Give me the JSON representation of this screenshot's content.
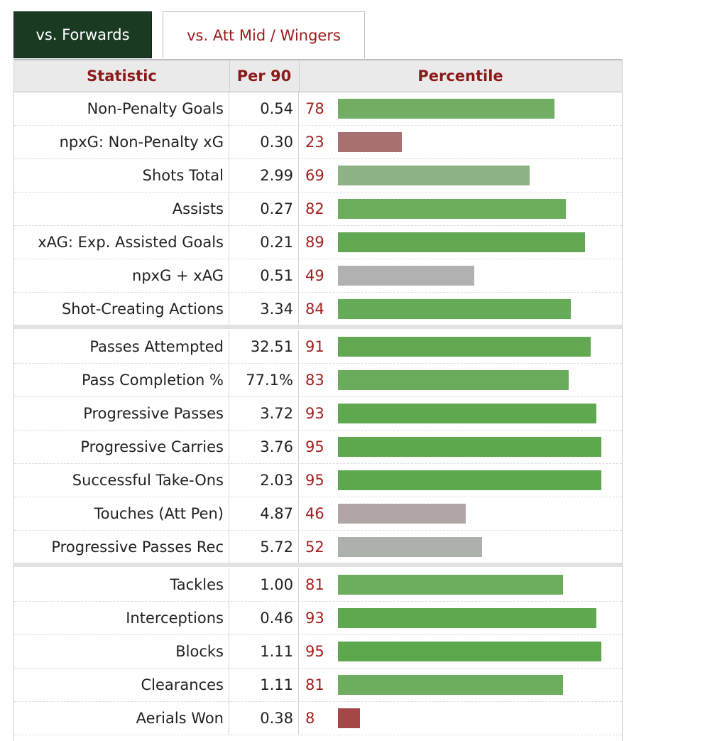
{
  "tabs": [
    {
      "label": "vs. Forwards",
      "active": true
    },
    {
      "label": "vs. Att Mid / Wingers",
      "active": false
    }
  ],
  "headers": {
    "statistic": "Statistic",
    "per90": "Per 90",
    "percentile": "Percentile"
  },
  "colors": {
    "high": "#62a852",
    "high_mid": "#72ad62",
    "mid_green": "#8cb286",
    "neutral": "#b1b1b1",
    "neutral_warm": "#b0a6a6",
    "neutral_cool": "#adb1ac",
    "low": "#a87070",
    "very_low": "#a54747"
  },
  "sections": [
    [
      {
        "stat": "Non-Penalty Goals",
        "per90": "0.54",
        "percentile": 78,
        "color": "#71ad63"
      },
      {
        "stat": "npxG: Non-Penalty xG",
        "per90": "0.30",
        "percentile": 23,
        "color": "#a87070"
      },
      {
        "stat": "Shots Total",
        "per90": "2.99",
        "percentile": 69,
        "color": "#8cb286"
      },
      {
        "stat": "Assists",
        "per90": "0.27",
        "percentile": 82,
        "color": "#6cad5c"
      },
      {
        "stat": "xAG: Exp. Assisted Goals",
        "per90": "0.21",
        "percentile": 89,
        "color": "#62a852"
      },
      {
        "stat": "npxG + xAG",
        "per90": "0.51",
        "percentile": 49,
        "color": "#b1b1b1"
      },
      {
        "stat": "Shot-Creating Actions",
        "per90": "3.34",
        "percentile": 84,
        "color": "#66ab57"
      }
    ],
    [
      {
        "stat": "Passes Attempted",
        "per90": "32.51",
        "percentile": 91,
        "color": "#62a852"
      },
      {
        "stat": "Pass Completion %",
        "per90": "77.1%",
        "percentile": 83,
        "color": "#6aac5b"
      },
      {
        "stat": "Progressive Passes",
        "per90": "3.72",
        "percentile": 93,
        "color": "#60a850"
      },
      {
        "stat": "Progressive Carries",
        "per90": "3.76",
        "percentile": 95,
        "color": "#5da84d"
      },
      {
        "stat": "Successful Take-Ons",
        "per90": "2.03",
        "percentile": 95,
        "color": "#5da84d"
      },
      {
        "stat": "Touches (Att Pen)",
        "per90": "4.87",
        "percentile": 46,
        "color": "#b0a6a6"
      },
      {
        "stat": "Progressive Passes Rec",
        "per90": "5.72",
        "percentile": 52,
        "color": "#adb1ac"
      }
    ],
    [
      {
        "stat": "Tackles",
        "per90": "1.00",
        "percentile": 81,
        "color": "#6cad5e"
      },
      {
        "stat": "Interceptions",
        "per90": "0.46",
        "percentile": 93,
        "color": "#60a850"
      },
      {
        "stat": "Blocks",
        "per90": "1.11",
        "percentile": 95,
        "color": "#5da84d"
      },
      {
        "stat": "Clearances",
        "per90": "1.11",
        "percentile": 81,
        "color": "#6cad5e"
      },
      {
        "stat": "Aerials Won",
        "per90": "0.38",
        "percentile": 8,
        "color": "#a54747"
      }
    ]
  ]
}
